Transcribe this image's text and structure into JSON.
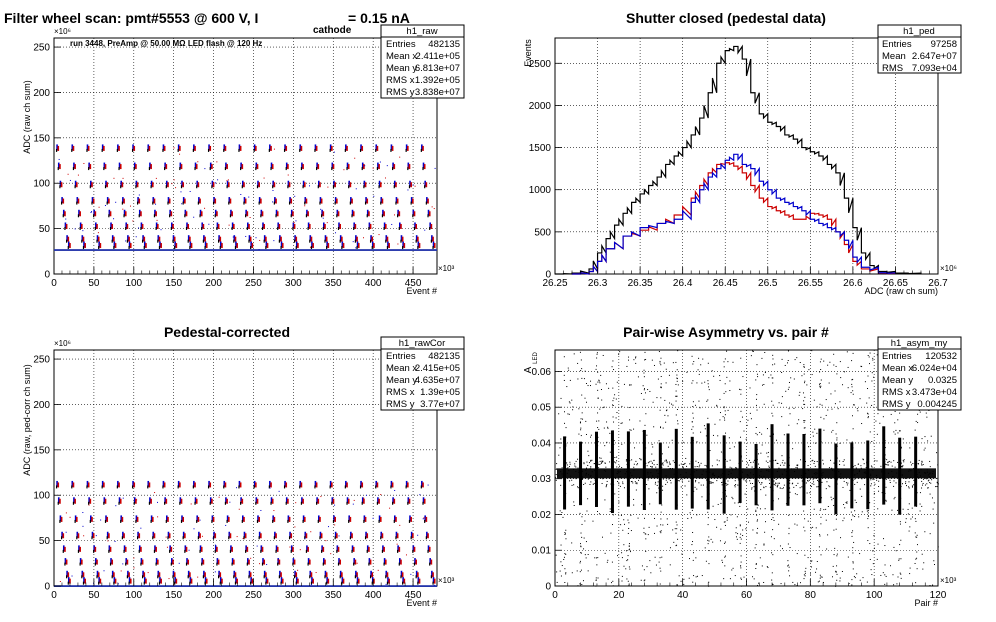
{
  "chart_data": [
    {
      "id": "raw",
      "type": "scatter",
      "title": "Filter wheel scan: pmt#5553 @   600 V, I",
      "title_sub": "cathode",
      "title_tail": " = 0.15 nA",
      "annotation": "run 3448, PreAmp @ 50.00 MΩ LED flash @  120 Hz",
      "xlabel": "Event #",
      "ylabel": "ADC (raw ch sum)",
      "xlim": [
        0,
        480
      ],
      "ylim": [
        0,
        260
      ],
      "x_exponent": "×10³",
      "y_exponent": "×10⁶",
      "xticks": [
        0,
        50,
        100,
        150,
        200,
        250,
        300,
        350,
        400,
        450
      ],
      "yticks": [
        0,
        50,
        100,
        150,
        200,
        250
      ],
      "baseline": 26.5,
      "levels": [
        140,
        120,
        100,
        82,
        68,
        54,
        40,
        33
      ],
      "n_bursts": 25,
      "grid": true,
      "stats": {
        "name": "h1_raw",
        "rows": [
          [
            "Entries",
            "482135"
          ],
          [
            "Mean x",
            "2.411e+05"
          ],
          [
            "Mean y",
            "6.813e+07"
          ],
          [
            "RMS x",
            "1.392e+05"
          ],
          [
            "RMS y",
            "3.838e+07"
          ]
        ]
      }
    },
    {
      "id": "ped",
      "type": "line",
      "title": "Shutter closed (pedestal data)",
      "xlabel": "ADC (raw ch sum)",
      "ylabel": "Events",
      "xlim": [
        26.25,
        26.7
      ],
      "ylim": [
        0,
        2800
      ],
      "x_exponent": "×10⁶",
      "xticks": [
        26.25,
        26.3,
        26.35,
        26.4,
        26.45,
        26.5,
        26.55,
        26.6,
        26.65,
        26.7
      ],
      "yticks": [
        0,
        500,
        1000,
        1500,
        2000,
        2500
      ],
      "grid": true,
      "series": [
        {
          "color": "#000000",
          "x": [
            26.25,
            26.27,
            26.29,
            26.3,
            26.31,
            26.32,
            26.33,
            26.34,
            26.35,
            26.36,
            26.37,
            26.38,
            26.39,
            26.4,
            26.41,
            26.42,
            26.43,
            26.44,
            26.45,
            26.46,
            26.47,
            26.48,
            26.49,
            26.5,
            26.51,
            26.52,
            26.53,
            26.54,
            26.55,
            26.56,
            26.57,
            26.58,
            26.59,
            26.6,
            26.61,
            26.62,
            26.63,
            26.65,
            26.68
          ],
          "y": [
            0,
            10,
            60,
            250,
            420,
            580,
            720,
            850,
            950,
            1050,
            1150,
            1300,
            1400,
            1500,
            1650,
            1850,
            2150,
            2500,
            2650,
            2700,
            2550,
            2150,
            1900,
            1800,
            1750,
            1650,
            1600,
            1500,
            1450,
            1400,
            1300,
            1200,
            900,
            550,
            250,
            100,
            30,
            10,
            0
          ]
        },
        {
          "color": "#cc0000",
          "x": [
            26.27,
            26.29,
            26.3,
            26.31,
            26.33,
            26.35,
            26.37,
            26.39,
            26.41,
            26.42,
            26.43,
            26.44,
            26.45,
            26.46,
            26.47,
            26.48,
            26.49,
            26.5,
            26.51,
            26.52,
            26.53,
            26.54,
            26.55,
            26.56,
            26.57,
            26.58,
            26.59,
            26.6,
            26.61,
            26.63,
            26.65
          ],
          "y": [
            0,
            30,
            150,
            300,
            450,
            520,
            600,
            700,
            900,
            1050,
            1200,
            1300,
            1320,
            1280,
            1200,
            1050,
            900,
            800,
            750,
            700,
            650,
            650,
            720,
            700,
            650,
            500,
            350,
            150,
            60,
            10,
            0
          ]
        },
        {
          "color": "#0000cc",
          "x": [
            26.27,
            26.29,
            26.3,
            26.31,
            26.33,
            26.35,
            26.37,
            26.39,
            26.41,
            26.42,
            26.43,
            26.44,
            26.45,
            26.46,
            26.47,
            26.48,
            26.49,
            26.5,
            26.51,
            26.52,
            26.53,
            26.54,
            26.55,
            26.56,
            26.57,
            26.58,
            26.59,
            26.6,
            26.61,
            26.63,
            26.65
          ],
          "y": [
            0,
            30,
            150,
            300,
            450,
            550,
            600,
            650,
            850,
            1000,
            1150,
            1250,
            1350,
            1420,
            1300,
            1250,
            1100,
            1000,
            900,
            850,
            800,
            750,
            650,
            600,
            550,
            500,
            400,
            200,
            80,
            15,
            0
          ]
        }
      ],
      "stats": {
        "name": "h1_ped",
        "rows": [
          [
            "Entries",
            "97258"
          ],
          [
            "Mean",
            "2.647e+07"
          ],
          [
            "RMS",
            "7.093e+04"
          ]
        ]
      }
    },
    {
      "id": "rawCor",
      "type": "scatter",
      "title": "Pedestal-corrected",
      "xlabel": "Event #",
      "ylabel": "ADC (raw, ped-corr ch sum)",
      "xlim": [
        0,
        480
      ],
      "ylim": [
        0,
        260
      ],
      "x_exponent": "×10³",
      "y_exponent": "×10⁶",
      "xticks": [
        0,
        50,
        100,
        150,
        200,
        250,
        300,
        350,
        400,
        450
      ],
      "yticks": [
        0,
        50,
        100,
        150,
        200,
        250
      ],
      "baseline": 0,
      "levels": [
        113,
        95,
        75,
        57,
        42,
        28,
        14,
        7
      ],
      "n_bursts": 25,
      "grid": true,
      "stats": {
        "name": "h1_rawCor",
        "rows": [
          [
            "Entries",
            "482135"
          ],
          [
            "Mean x",
            "2.415e+05"
          ],
          [
            "Mean y",
            "4.635e+07"
          ],
          [
            "RMS x",
            "1.39e+05"
          ],
          [
            "RMS y",
            "3.77e+07"
          ]
        ]
      }
    },
    {
      "id": "asym",
      "type": "scatter",
      "title": "Pair-wise Asymmetry vs. pair #",
      "xlabel": "Pair #",
      "ylabel": "A",
      "ylabel_sub": "LED",
      "xlim": [
        0,
        120
      ],
      "ylim": [
        0,
        0.066
      ],
      "x_exponent": "×10³",
      "xticks": [
        0,
        20,
        40,
        60,
        80,
        100,
        120
      ],
      "yticks": [
        0,
        0.01,
        0.02,
        0.03,
        0.04,
        0.05,
        0.06
      ],
      "band_center": 0.0315,
      "spike_x": [
        3,
        8,
        13,
        18,
        23,
        28,
        33,
        38,
        43,
        48,
        53,
        58,
        63,
        68,
        73,
        78,
        83,
        88,
        93,
        98,
        103,
        108,
        113
      ],
      "grid": true,
      "stats": {
        "name": "h1_asym_my",
        "rows": [
          [
            "Entries",
            "120532"
          ],
          [
            "Mean x",
            "6.024e+04"
          ],
          [
            "Mean y",
            "0.0325"
          ],
          [
            "RMS x",
            "3.473e+04"
          ],
          [
            "RMS y",
            "0.004245"
          ]
        ]
      }
    }
  ]
}
